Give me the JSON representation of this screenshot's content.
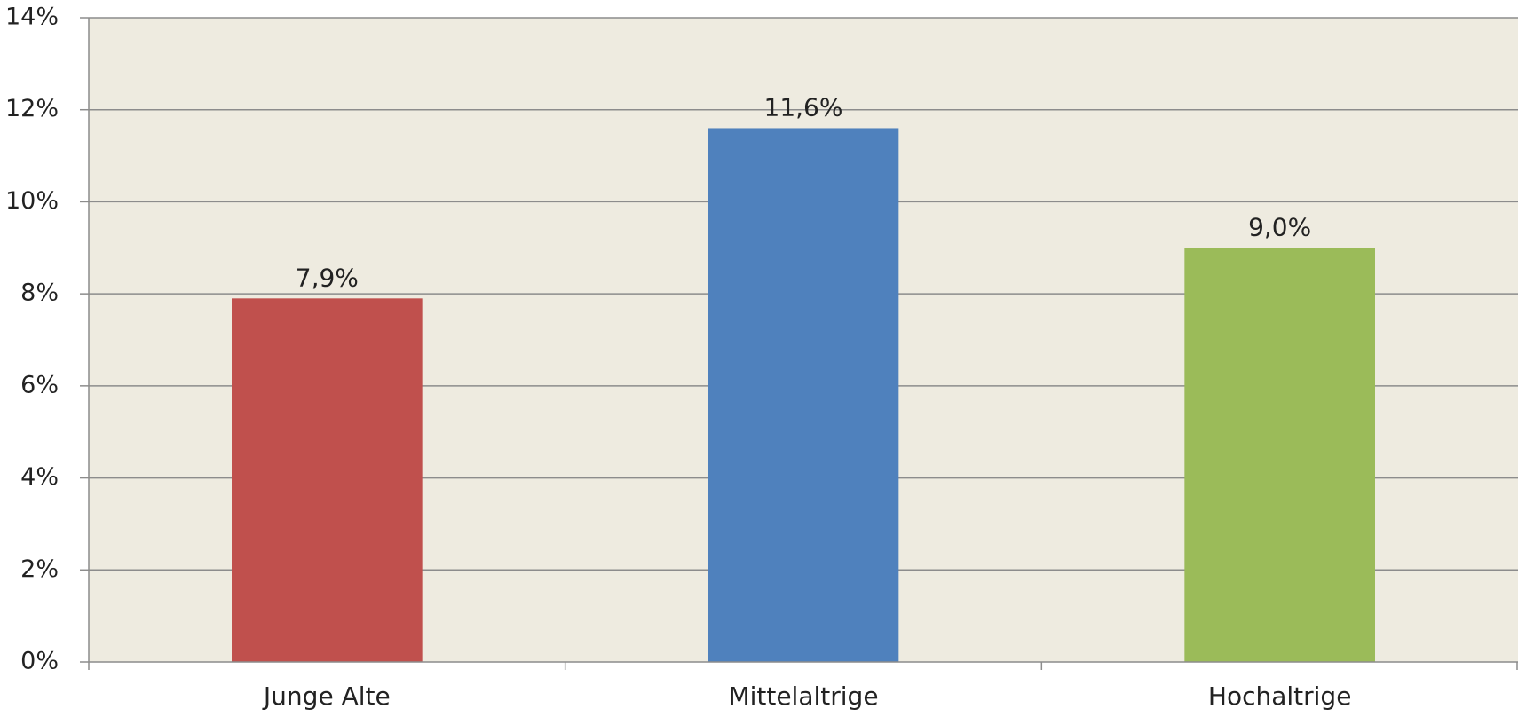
{
  "chart_data": {
    "type": "bar",
    "categories": [
      "Junge Alte",
      "Mittelaltrige",
      "Hochaltrige"
    ],
    "values": [
      7.9,
      11.6,
      9.0
    ],
    "value_labels": [
      "7,9%",
      "11,6%",
      "9,0%"
    ],
    "colors": [
      "#C0504D",
      "#4F81BD",
      "#9BBB59"
    ],
    "ylim": [
      0,
      14
    ],
    "yticks": [
      0,
      2,
      4,
      6,
      8,
      10,
      12,
      14
    ],
    "ytick_labels": [
      "0%",
      "2%",
      "4%",
      "6%",
      "8%",
      "10%",
      "12%",
      "14%"
    ],
    "grid": true,
    "plot_background": "#EEEBE0",
    "title": "",
    "xlabel": "",
    "ylabel": ""
  }
}
